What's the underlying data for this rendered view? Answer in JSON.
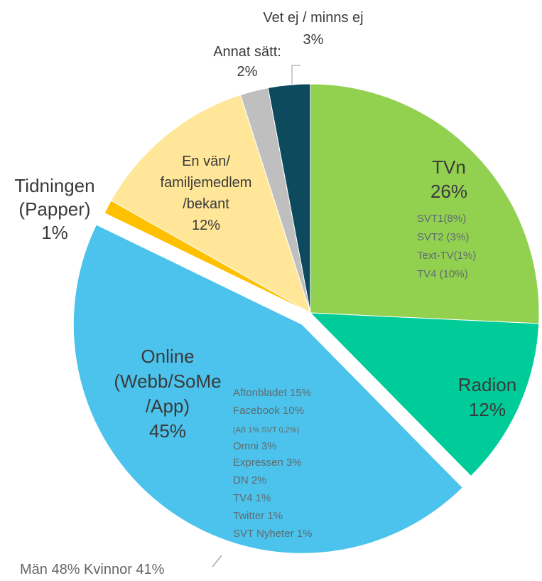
{
  "chart_data": {
    "type": "pie",
    "categories": [
      "TVn",
      "Radion",
      "Online (Webb/SoMe /App)",
      "Tidningen (Papper)",
      "En vän/ familjemedlem /bekant",
      "Annat sätt:",
      "Vet ej / minns ej"
    ],
    "values": [
      26,
      12,
      45,
      1,
      12,
      2,
      3
    ],
    "value_labels": [
      "26%",
      "12%",
      "45%",
      "1%",
      "12%",
      "2%",
      "3%"
    ],
    "colors": [
      "#92d050",
      "#00cc99",
      "#4cc3ec",
      "#ffc000",
      "#ffe699",
      "#bfbfbf",
      "#0d4a5e"
    ],
    "details": {
      "0": [
        "SVT1(8%)",
        "SVT2 (3%)",
        "Text-TV(1%)",
        "TV4 (10%)"
      ],
      "2": [
        "Aftonbladet 15%",
        "Facebook 10%",
        "(AB 1% SVT 0,2%)",
        "Omni 3%",
        "Expressen 3%",
        "DN 2%",
        "TV4 1%",
        "Twitter 1%",
        "SVT Nyheter 1%"
      ]
    },
    "annotation": "Män 48% Kvinnor 41%"
  }
}
